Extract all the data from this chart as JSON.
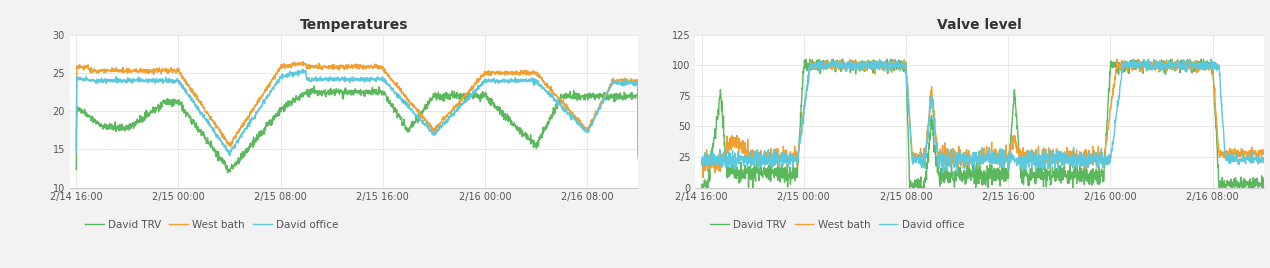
{
  "title1": "Temperatures",
  "title2": "Valve level",
  "legend_labels": [
    "David TRV",
    "West bath",
    "David office"
  ],
  "colors": [
    "#5cb85c",
    "#f0a030",
    "#5bc8de"
  ],
  "temp_ylim": [
    10.0,
    30.0
  ],
  "temp_yticks": [
    10.0,
    15.0,
    20.0,
    25.0,
    30.0
  ],
  "valve_ylim": [
    0.0,
    125.0
  ],
  "valve_yticks": [
    0.0,
    25.0,
    50.0,
    75.0,
    100.0,
    125.0
  ],
  "xtick_labels": [
    "2/14 16:00",
    "2/15 00:00",
    "2/15 08:00",
    "2/15 16:00",
    "2/16 00:00",
    "2/16 08:00"
  ],
  "background_color": "#f2f2f2",
  "plot_bg_color": "#ffffff",
  "grid_color": "#e8e8e8",
  "title_fontsize": 10,
  "legend_fontsize": 7.5,
  "tick_fontsize": 7,
  "line_width": 1.0
}
